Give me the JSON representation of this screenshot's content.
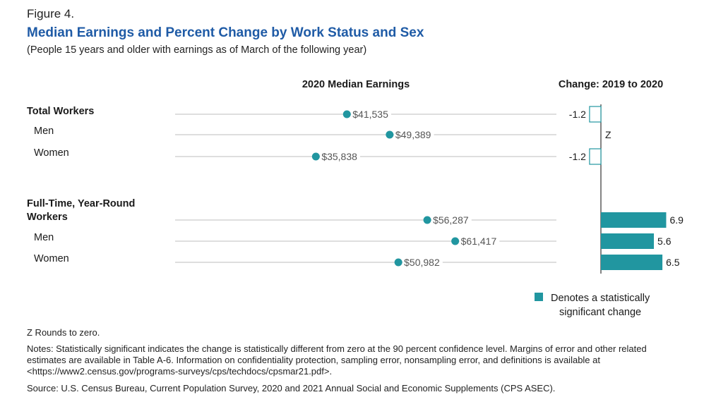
{
  "figure_label": "Figure 4.",
  "title": "Median Earnings and Percent Change by Work Status and Sex",
  "subtitle": "(People 15 years and older with earnings as of March of the following year)",
  "chart_data": {
    "type": "dot-and-bar",
    "left_panel_title": "2020 Median Earnings",
    "right_panel_title": "Change: 2019 to 2020",
    "categories": [
      {
        "label": "Total Workers",
        "is_group": true,
        "earnings": 41535,
        "earnings_label": "$41,535",
        "change": -1.2,
        "change_label": "-1.2",
        "significant": false
      },
      {
        "label": "Men",
        "is_group": false,
        "earnings": 49389,
        "earnings_label": "$49,389",
        "change": 0,
        "change_label": "Z",
        "significant": false
      },
      {
        "label": "Women",
        "is_group": false,
        "earnings": 35838,
        "earnings_label": "$35,838",
        "change": -1.2,
        "change_label": "-1.2",
        "significant": false
      },
      {
        "label": "Full-Time, Year-Round\n Workers",
        "is_group": true,
        "earnings": 56287,
        "earnings_label": "$56,287",
        "change": 6.9,
        "change_label": "6.9",
        "significant": true
      },
      {
        "label": "Men",
        "is_group": false,
        "earnings": 61417,
        "earnings_label": "$61,417",
        "change": 5.6,
        "change_label": "5.6",
        "significant": true
      },
      {
        "label": "Women",
        "is_group": false,
        "earnings": 50982,
        "earnings_label": "$50,982",
        "change": 6.5,
        "change_label": "6.5",
        "significant": true
      }
    ],
    "earnings_range": [
      10000,
      80000
    ],
    "change_range": [
      -1.2,
      6.9
    ],
    "legend_label_line1": "Denotes a statistically",
    "legend_label_line2": "significant change",
    "colors": {
      "accent": "#2196a0",
      "title": "#1f5ba6",
      "gridline": "#bdbdbd",
      "axis": "#333333"
    }
  },
  "footnotes": {
    "z_note": "Z Rounds to zero.",
    "notes": "Notes: Statistically significant indicates the change is statistically different from zero at the 90 percent confidence level. Margins of error and other related estimates are available in Table A-6. Information on confidentiality protection, sampling error, nonsampling error, and definitions is available at <https://www2.census.gov/programs-surveys/cps/techdocs/cpsmar21.pdf>.",
    "source": "Source: U.S. Census Bureau, Current Population Survey, 2020 and 2021 Annual Social and Economic Supplements (CPS ASEC)."
  }
}
